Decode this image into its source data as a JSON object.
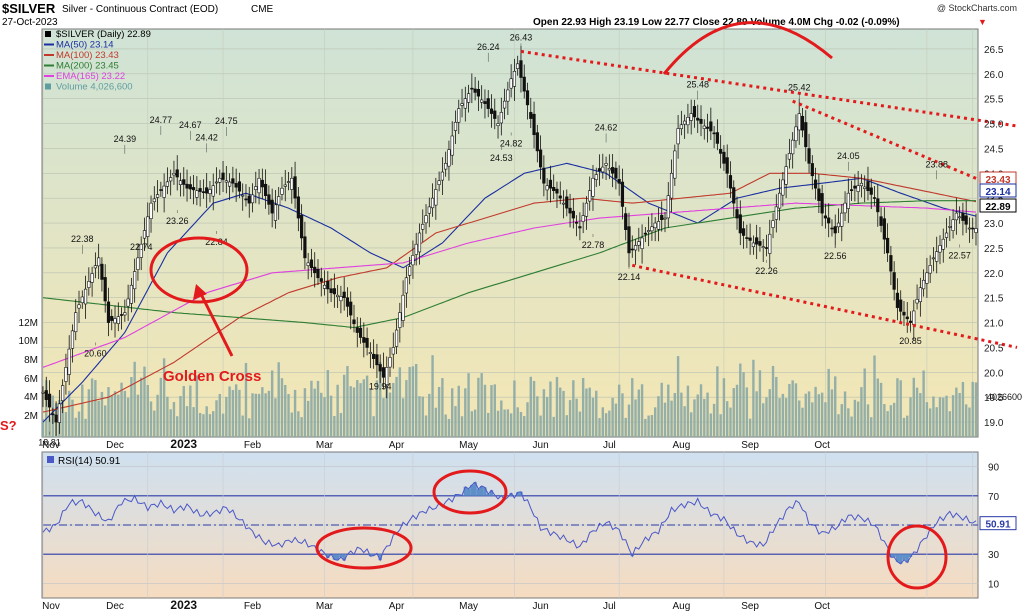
{
  "header": {
    "symbol": "$SILVER",
    "name": "Silver - Continuous Contract (EOD)",
    "exchange": "CME",
    "date": "27-Oct-2023",
    "copyright": "@ StockCharts.com",
    "quote": "Open 22.93  High 23.19  Low 22.77  Close 22.89  Volume 4.0M  Chg -0.02 (-0.09%)",
    "down_arrow": "▼"
  },
  "legend": [
    {
      "text": "$SILVER (Daily) 22.89",
      "color": "#000000",
      "icon": "square-marker-icon"
    },
    {
      "text": "MA(50) 23.14",
      "color": "#1a2fa0",
      "icon": "line-marker-icon"
    },
    {
      "text": "MA(100) 23.43",
      "color": "#c0392b",
      "icon": "line-marker-icon"
    },
    {
      "text": "MA(200) 23.45",
      "color": "#2e7d32",
      "icon": "line-marker-icon"
    },
    {
      "text": "EMA(165) 23.22",
      "color": "#e040e0",
      "icon": "line-marker-icon"
    },
    {
      "text": "Volume 4,026,600",
      "color": "#5f9ea0",
      "icon": "square-marker-icon"
    }
  ],
  "rsi_label": "RSI(14) 50.91",
  "annotation": {
    "golden_cross": "Golden Cross",
    "edge_fragment": "S?"
  },
  "colors": {
    "price_bg_top": "#cfe3d6",
    "price_bg_bottom": "#f4e6b4",
    "rsi_bg_top": "#cfe0f0",
    "rsi_bg_bottom": "#f6dcc0",
    "candle": "#111111",
    "volume": "#8aa9a6",
    "annotation_red": "#e31a1c",
    "rsi_line": "#4a58c8"
  },
  "chart_data": {
    "type": "candlestick",
    "x_ticks": [
      "Nov",
      "Dec",
      "2023",
      "Feb",
      "Mar",
      "Apr",
      "May",
      "Jun",
      "Jul",
      "Aug",
      "Sep",
      "Oct"
    ],
    "y_ticks": [
      19.0,
      19.5,
      20.0,
      20.5,
      21.0,
      21.5,
      22.0,
      22.5,
      23.0,
      23.5,
      24.0,
      24.5,
      25.0,
      25.5,
      26.0,
      26.5
    ],
    "ylim": [
      18.7,
      26.9
    ],
    "volume_ticks": [
      "2M",
      "4M",
      "6M",
      "8M",
      "10M",
      "12M"
    ],
    "volume_label": "4026600",
    "current_value_labels": [
      {
        "text": "23.43",
        "value": 23.43,
        "color": "#c0392b"
      },
      {
        "text": "23.14",
        "value": 23.14,
        "color": "#1a2fa0"
      },
      {
        "text": "22.89",
        "value": 22.89,
        "color": "#000000"
      }
    ],
    "close_anchors": [
      {
        "t": 0,
        "v": 19.6
      },
      {
        "t": 4,
        "v": 19.0
      },
      {
        "t": 10,
        "v": 21.2
      },
      {
        "t": 17,
        "v": 22.3
      },
      {
        "t": 20,
        "v": 21.0
      },
      {
        "t": 25,
        "v": 21.2
      },
      {
        "t": 33,
        "v": 23.4
      },
      {
        "t": 40,
        "v": 24.0
      },
      {
        "t": 44,
        "v": 23.7
      },
      {
        "t": 50,
        "v": 23.6
      },
      {
        "t": 54,
        "v": 23.9
      },
      {
        "t": 58,
        "v": 23.8
      },
      {
        "t": 63,
        "v": 23.4
      },
      {
        "t": 66,
        "v": 23.9
      },
      {
        "t": 70,
        "v": 23.2
      },
      {
        "t": 73,
        "v": 23.7
      },
      {
        "t": 76,
        "v": 23.9
      },
      {
        "t": 80,
        "v": 22.3
      },
      {
        "t": 84,
        "v": 21.9
      },
      {
        "t": 88,
        "v": 21.6
      },
      {
        "t": 92,
        "v": 21.5
      },
      {
        "t": 96,
        "v": 20.8
      },
      {
        "t": 100,
        "v": 20.4
      },
      {
        "t": 104,
        "v": 19.9
      },
      {
        "t": 107,
        "v": 20.5
      },
      {
        "t": 111,
        "v": 21.9
      },
      {
        "t": 115,
        "v": 22.8
      },
      {
        "t": 119,
        "v": 23.5
      },
      {
        "t": 123,
        "v": 24.2
      },
      {
        "t": 127,
        "v": 25.3
      },
      {
        "t": 131,
        "v": 25.7
      },
      {
        "t": 135,
        "v": 25.4
      },
      {
        "t": 139,
        "v": 25.0
      },
      {
        "t": 143,
        "v": 25.9
      },
      {
        "t": 145,
        "v": 26.2
      },
      {
        "t": 149,
        "v": 25.1
      },
      {
        "t": 153,
        "v": 23.8
      },
      {
        "t": 157,
        "v": 23.6
      },
      {
        "t": 161,
        "v": 23.2
      },
      {
        "t": 164,
        "v": 22.9
      },
      {
        "t": 168,
        "v": 23.9
      },
      {
        "t": 172,
        "v": 24.2
      },
      {
        "t": 176,
        "v": 23.8
      },
      {
        "t": 179,
        "v": 22.4
      },
      {
        "t": 183,
        "v": 22.7
      },
      {
        "t": 187,
        "v": 23.0
      },
      {
        "t": 190,
        "v": 23.1
      },
      {
        "t": 194,
        "v": 24.9
      },
      {
        "t": 198,
        "v": 25.2
      },
      {
        "t": 201,
        "v": 25.0
      },
      {
        "t": 205,
        "v": 24.8
      },
      {
        "t": 209,
        "v": 24.0
      },
      {
        "t": 213,
        "v": 22.8
      },
      {
        "t": 217,
        "v": 22.6
      },
      {
        "t": 221,
        "v": 22.5
      },
      {
        "t": 225,
        "v": 23.6
      },
      {
        "t": 228,
        "v": 24.4
      },
      {
        "t": 231,
        "v": 25.2
      },
      {
        "t": 234,
        "v": 24.2
      },
      {
        "t": 238,
        "v": 23.2
      },
      {
        "t": 242,
        "v": 22.8
      },
      {
        "t": 246,
        "v": 23.6
      },
      {
        "t": 250,
        "v": 23.8
      },
      {
        "t": 254,
        "v": 23.5
      },
      {
        "t": 258,
        "v": 22.4
      },
      {
        "t": 261,
        "v": 21.3
      },
      {
        "t": 265,
        "v": 21.0
      },
      {
        "t": 268,
        "v": 21.7
      },
      {
        "t": 272,
        "v": 22.3
      },
      {
        "t": 276,
        "v": 22.8
      },
      {
        "t": 279,
        "v": 23.2
      },
      {
        "t": 283,
        "v": 22.9
      },
      {
        "t": 285,
        "v": 22.89
      }
    ],
    "moving_averages": [
      {
        "name": "MA(50)",
        "color": "#1a2fa0",
        "points": [
          [
            0,
            19.0
          ],
          [
            12,
            19.8
          ],
          [
            25,
            20.8
          ],
          [
            38,
            22.4
          ],
          [
            52,
            23.4
          ],
          [
            62,
            23.6
          ],
          [
            75,
            23.3
          ],
          [
            88,
            22.9
          ],
          [
            100,
            22.4
          ],
          [
            110,
            22.1
          ],
          [
            122,
            22.6
          ],
          [
            135,
            23.5
          ],
          [
            147,
            24.0
          ],
          [
            160,
            24.2
          ],
          [
            172,
            24.0
          ],
          [
            185,
            23.4
          ],
          [
            200,
            23.0
          ],
          [
            212,
            23.5
          ],
          [
            225,
            23.7
          ],
          [
            238,
            23.8
          ],
          [
            250,
            23.9
          ],
          [
            262,
            23.6
          ],
          [
            275,
            23.3
          ],
          [
            285,
            23.14
          ]
        ]
      },
      {
        "name": "MA(100)",
        "color": "#c0392b",
        "points": [
          [
            0,
            19.2
          ],
          [
            20,
            19.5
          ],
          [
            40,
            20.2
          ],
          [
            60,
            21.1
          ],
          [
            75,
            21.6
          ],
          [
            90,
            21.9
          ],
          [
            105,
            22.1
          ],
          [
            120,
            22.8
          ],
          [
            135,
            23.1
          ],
          [
            150,
            23.4
          ],
          [
            165,
            23.5
          ],
          [
            180,
            23.4
          ],
          [
            195,
            23.5
          ],
          [
            210,
            23.6
          ],
          [
            222,
            24.0
          ],
          [
            235,
            24.0
          ],
          [
            250,
            23.9
          ],
          [
            265,
            23.7
          ],
          [
            285,
            23.43
          ]
        ]
      },
      {
        "name": "MA(200)",
        "color": "#2e7d32",
        "points": [
          [
            0,
            21.5
          ],
          [
            20,
            21.35
          ],
          [
            40,
            21.2
          ],
          [
            60,
            21.1
          ],
          [
            80,
            21.0
          ],
          [
            95,
            20.9
          ],
          [
            110,
            21.1
          ],
          [
            130,
            21.6
          ],
          [
            150,
            22.0
          ],
          [
            170,
            22.4
          ],
          [
            190,
            22.9
          ],
          [
            210,
            23.1
          ],
          [
            230,
            23.3
          ],
          [
            250,
            23.4
          ],
          [
            270,
            23.45
          ],
          [
            285,
            23.45
          ]
        ]
      },
      {
        "name": "EMA(165)",
        "color": "#e040e0",
        "points": [
          [
            0,
            20.1
          ],
          [
            25,
            20.7
          ],
          [
            50,
            21.6
          ],
          [
            70,
            22.0
          ],
          [
            90,
            22.1
          ],
          [
            110,
            22.2
          ],
          [
            130,
            22.6
          ],
          [
            150,
            22.9
          ],
          [
            170,
            23.1
          ],
          [
            190,
            23.2
          ],
          [
            210,
            23.3
          ],
          [
            230,
            23.4
          ],
          [
            250,
            23.35
          ],
          [
            270,
            23.3
          ],
          [
            285,
            23.22
          ]
        ]
      }
    ],
    "price_labels": [
      {
        "t": 2,
        "v": 18.81,
        "text": "18.81",
        "pos": "below"
      },
      {
        "t": 12,
        "v": 22.38,
        "text": "22.38",
        "pos": "above"
      },
      {
        "t": 16,
        "v": 20.6,
        "text": "20.60",
        "pos": "below"
      },
      {
        "t": 25,
        "v": 24.39,
        "text": "24.39",
        "pos": "above"
      },
      {
        "t": 30,
        "v": 22.74,
        "text": "22.74",
        "pos": "below"
      },
      {
        "t": 36,
        "v": 24.77,
        "text": "24.77",
        "pos": "above"
      },
      {
        "t": 41,
        "v": 23.26,
        "text": "23.26",
        "pos": "below"
      },
      {
        "t": 45,
        "v": 24.67,
        "text": "24.67",
        "pos": "above"
      },
      {
        "t": 50,
        "v": 24.42,
        "text": "24.42",
        "pos": "above"
      },
      {
        "t": 53,
        "v": 22.84,
        "text": "22.84",
        "pos": "below"
      },
      {
        "t": 56,
        "v": 24.75,
        "text": "24.75",
        "pos": "above"
      },
      {
        "t": 103,
        "v": 19.94,
        "text": "19.94",
        "pos": "below"
      },
      {
        "t": 136,
        "v": 26.24,
        "text": "26.24",
        "pos": "above"
      },
      {
        "t": 140,
        "v": 24.53,
        "text": "24.53",
        "pos": "below"
      },
      {
        "t": 143,
        "v": 24.82,
        "text": "24.82",
        "pos": "below"
      },
      {
        "t": 146,
        "v": 26.43,
        "text": "26.43",
        "pos": "above"
      },
      {
        "t": 168,
        "v": 22.78,
        "text": "22.78",
        "pos": "below"
      },
      {
        "t": 172,
        "v": 24.62,
        "text": "24.62",
        "pos": "above"
      },
      {
        "t": 179,
        "v": 22.14,
        "text": "22.14",
        "pos": "below"
      },
      {
        "t": 200,
        "v": 25.48,
        "text": "25.48",
        "pos": "above"
      },
      {
        "t": 221,
        "v": 22.26,
        "text": "22.26",
        "pos": "below"
      },
      {
        "t": 231,
        "v": 25.42,
        "text": "25.42",
        "pos": "above"
      },
      {
        "t": 246,
        "v": 24.05,
        "text": "24.05",
        "pos": "above"
      },
      {
        "t": 242,
        "v": 22.56,
        "text": "22.56",
        "pos": "below"
      },
      {
        "t": 265,
        "v": 20.85,
        "text": "20.85",
        "pos": "below"
      },
      {
        "t": 273,
        "v": 23.88,
        "text": "23.88",
        "pos": "above"
      },
      {
        "t": 280,
        "v": 22.57,
        "text": "22.57",
        "pos": "below"
      }
    ],
    "trendlines": [
      {
        "from": {
          "t": 146,
          "v": 26.45
        },
        "to": {
          "t": 285,
          "v": 24.95
        }
      },
      {
        "from": {
          "t": 229,
          "v": 25.45
        },
        "to": {
          "t": 285,
          "v": 23.55
        }
      },
      {
        "from": {
          "t": 180,
          "v": 22.15
        },
        "to": {
          "t": 285,
          "v": 20.5
        }
      }
    ],
    "rsi": {
      "y_ticks": [
        10,
        30,
        50,
        70,
        90
      ],
      "ylim": [
        0,
        100
      ],
      "current_label": "50.91",
      "anchors": [
        {
          "t": 0,
          "v": 45
        },
        {
          "t": 4,
          "v": 50
        },
        {
          "t": 8,
          "v": 65
        },
        {
          "t": 12,
          "v": 66
        },
        {
          "t": 16,
          "v": 58
        },
        {
          "t": 20,
          "v": 52
        },
        {
          "t": 24,
          "v": 66
        },
        {
          "t": 28,
          "v": 68
        },
        {
          "t": 32,
          "v": 62
        },
        {
          "t": 36,
          "v": 65
        },
        {
          "t": 40,
          "v": 60
        },
        {
          "t": 44,
          "v": 63
        },
        {
          "t": 48,
          "v": 57
        },
        {
          "t": 52,
          "v": 58
        },
        {
          "t": 56,
          "v": 62
        },
        {
          "t": 60,
          "v": 54
        },
        {
          "t": 64,
          "v": 45
        },
        {
          "t": 68,
          "v": 38
        },
        {
          "t": 72,
          "v": 36
        },
        {
          "t": 76,
          "v": 40
        },
        {
          "t": 80,
          "v": 38
        },
        {
          "t": 84,
          "v": 33
        },
        {
          "t": 88,
          "v": 28
        },
        {
          "t": 91,
          "v": 26
        },
        {
          "t": 94,
          "v": 31
        },
        {
          "t": 97,
          "v": 34
        },
        {
          "t": 100,
          "v": 30
        },
        {
          "t": 103,
          "v": 28
        },
        {
          "t": 106,
          "v": 38
        },
        {
          "t": 109,
          "v": 48
        },
        {
          "t": 113,
          "v": 55
        },
        {
          "t": 117,
          "v": 60
        },
        {
          "t": 121,
          "v": 63
        },
        {
          "t": 125,
          "v": 68
        },
        {
          "t": 128,
          "v": 72
        },
        {
          "t": 131,
          "v": 78
        },
        {
          "t": 134,
          "v": 76
        },
        {
          "t": 137,
          "v": 72
        },
        {
          "t": 140,
          "v": 68
        },
        {
          "t": 143,
          "v": 70
        },
        {
          "t": 146,
          "v": 72
        },
        {
          "t": 149,
          "v": 62
        },
        {
          "t": 152,
          "v": 48
        },
        {
          "t": 156,
          "v": 44
        },
        {
          "t": 160,
          "v": 40
        },
        {
          "t": 164,
          "v": 35
        },
        {
          "t": 168,
          "v": 46
        },
        {
          "t": 172,
          "v": 52
        },
        {
          "t": 176,
          "v": 46
        },
        {
          "t": 180,
          "v": 30
        },
        {
          "t": 184,
          "v": 40
        },
        {
          "t": 188,
          "v": 46
        },
        {
          "t": 192,
          "v": 60
        },
        {
          "t": 196,
          "v": 64
        },
        {
          "t": 200,
          "v": 66
        },
        {
          "t": 204,
          "v": 58
        },
        {
          "t": 208,
          "v": 54
        },
        {
          "t": 212,
          "v": 44
        },
        {
          "t": 216,
          "v": 38
        },
        {
          "t": 220,
          "v": 36
        },
        {
          "t": 224,
          "v": 50
        },
        {
          "t": 228,
          "v": 62
        },
        {
          "t": 231,
          "v": 66
        },
        {
          "t": 234,
          "v": 52
        },
        {
          "t": 238,
          "v": 44
        },
        {
          "t": 242,
          "v": 48
        },
        {
          "t": 246,
          "v": 56
        },
        {
          "t": 250,
          "v": 55
        },
        {
          "t": 254,
          "v": 50
        },
        {
          "t": 257,
          "v": 38
        },
        {
          "t": 260,
          "v": 26
        },
        {
          "t": 263,
          "v": 24
        },
        {
          "t": 266,
          "v": 30
        },
        {
          "t": 269,
          "v": 40
        },
        {
          "t": 273,
          "v": 52
        },
        {
          "t": 277,
          "v": 58
        },
        {
          "t": 281,
          "v": 55
        },
        {
          "t": 285,
          "v": 50.91
        }
      ],
      "oversold_dip": {
        "from": 260,
        "to": 266
      }
    }
  }
}
